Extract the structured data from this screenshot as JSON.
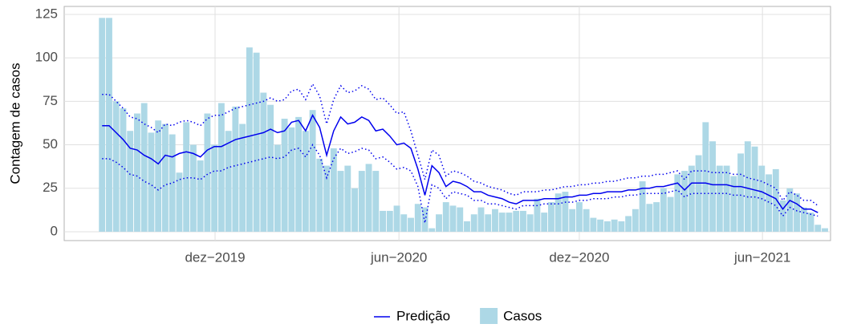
{
  "chart_data": {
    "type": "bar",
    "y_label": "Contagem de casos",
    "categories": [
      null,
      null,
      null,
      null,
      null,
      null,
      null,
      null,
      null,
      null,
      null,
      null,
      null,
      null,
      null,
      null,
      null,
      null,
      null,
      null,
      null,
      null,
      null,
      null,
      null,
      null,
      null,
      null,
      null,
      null,
      null,
      null,
      null,
      null,
      null,
      null,
      null,
      null,
      null,
      null,
      null,
      null,
      null,
      null,
      null,
      null,
      null,
      null,
      null,
      null,
      null,
      null,
      null,
      null,
      null,
      null,
      null,
      null,
      null,
      null,
      null,
      null,
      null,
      null,
      null,
      null,
      null,
      null,
      null,
      null,
      null,
      null,
      null,
      null,
      null,
      null,
      null,
      null,
      null,
      null,
      null,
      null,
      null,
      null,
      null,
      null,
      null,
      null,
      null,
      null,
      null,
      null,
      null,
      null,
      null,
      null,
      null,
      null,
      null,
      null,
      null,
      null,
      null,
      null
    ],
    "series": [
      {
        "name": "Predição",
        "type": "line",
        "color": "#0000ee",
        "values": [
          61,
          61,
          57,
          53,
          48,
          47,
          44,
          42,
          39,
          44,
          43,
          45,
          46,
          45,
          43,
          47,
          49,
          49,
          51,
          53,
          54,
          55,
          56,
          57,
          59,
          57,
          58,
          63,
          64,
          58,
          67,
          60,
          44,
          58,
          66,
          62,
          63,
          66,
          64,
          58,
          59,
          55,
          50,
          51,
          48,
          36,
          21,
          38,
          34,
          26,
          29,
          28,
          26,
          23,
          23,
          21,
          20,
          19,
          17,
          16,
          18,
          18,
          18,
          19,
          19,
          19,
          20,
          20,
          21,
          21,
          22,
          22,
          23,
          23,
          23,
          24,
          24,
          25,
          25,
          26,
          26,
          27,
          28,
          24,
          28,
          28,
          28,
          27,
          27,
          27,
          26,
          26,
          25,
          24,
          23,
          21,
          19,
          13,
          18,
          16,
          13,
          13,
          11,
          null
        ],
        "upper": [
          79,
          79,
          75,
          71,
          66,
          65,
          62,
          60,
          57,
          62,
          61,
          63,
          64,
          63,
          61,
          65,
          67,
          67,
          69,
          71,
          72,
          73,
          74,
          75,
          77,
          75,
          76,
          81,
          82,
          76,
          85,
          78,
          62,
          76,
          84,
          80,
          81,
          84,
          82,
          76,
          77,
          73,
          68,
          69,
          58,
          44,
          30,
          47,
          44,
          32,
          35,
          34,
          32,
          29,
          28,
          26,
          25,
          24,
          22,
          21,
          23,
          23,
          23,
          24,
          24,
          25,
          26,
          26,
          27,
          27,
          28,
          28,
          29,
          29,
          30,
          31,
          31,
          32,
          32,
          33,
          33,
          34,
          35,
          30,
          35,
          35,
          35,
          34,
          34,
          34,
          33,
          33,
          31,
          30,
          29,
          27,
          25,
          18,
          23,
          21,
          18,
          18,
          15,
          null
        ],
        "lower": [
          42,
          42,
          40,
          37,
          33,
          32,
          29,
          27,
          24,
          27,
          28,
          30,
          31,
          31,
          30,
          33,
          35,
          35,
          37,
          38,
          39,
          40,
          41,
          42,
          43,
          42,
          43,
          47,
          48,
          43,
          50,
          44,
          31,
          42,
          48,
          45,
          46,
          48,
          47,
          42,
          43,
          40,
          36,
          37,
          35,
          26,
          5,
          27,
          25,
          19,
          23,
          22,
          21,
          18,
          18,
          16,
          16,
          15,
          14,
          13,
          15,
          15,
          15,
          16,
          16,
          16,
          17,
          17,
          18,
          18,
          19,
          19,
          19,
          20,
          20,
          21,
          21,
          22,
          22,
          22,
          22,
          23,
          24,
          20,
          22,
          22,
          22,
          22,
          22,
          22,
          21,
          21,
          20,
          20,
          19,
          17,
          15,
          9,
          14,
          12,
          11,
          10,
          9,
          null
        ]
      },
      {
        "name": "Casos",
        "type": "bar",
        "color": "#add8e6",
        "values": [
          123,
          123,
          75,
          71,
          58,
          68,
          74,
          57,
          64,
          62,
          56,
          34,
          63,
          50,
          41,
          68,
          50,
          74,
          58,
          72,
          62,
          106,
          103,
          80,
          73,
          50,
          65,
          60,
          66,
          58,
          70,
          42,
          38,
          48,
          35,
          38,
          25,
          35,
          39,
          35,
          12,
          12,
          15,
          10,
          8,
          16,
          14,
          2,
          10,
          17,
          15,
          14,
          6,
          10,
          14,
          10,
          13,
          11,
          11,
          12,
          12,
          10,
          19,
          11,
          17,
          22,
          23,
          13,
          17,
          13,
          8,
          7,
          6,
          7,
          6,
          9,
          13,
          29,
          16,
          17,
          25,
          20,
          33,
          35,
          38,
          44,
          63,
          52,
          38,
          38,
          32,
          45,
          52,
          49,
          38,
          33,
          36,
          18,
          25,
          22,
          14,
          11,
          4,
          2
        ]
      }
    ],
    "xlim": [
      -5.4,
      103.8
    ],
    "xticks": [
      {
        "value": 16.1,
        "label": "dez−2019"
      },
      {
        "value": 42.3,
        "label": "jun−2020"
      },
      {
        "value": 68,
        "label": "dez−2020"
      },
      {
        "value": 94.1,
        "label": "jun−2021"
      }
    ],
    "ylim": [
      -5.1,
      129.6
    ],
    "yticks": [
      0,
      25,
      50,
      75,
      100,
      125
    ],
    "grid": true
  }
}
